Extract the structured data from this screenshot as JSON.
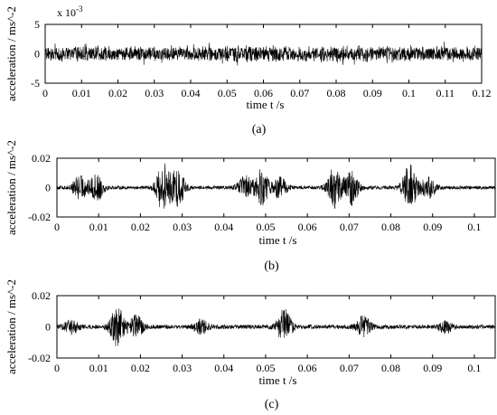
{
  "chart_data": [
    {
      "panel_label": "(a)",
      "type": "line",
      "xlabel": "time t /s",
      "ylabel": "acceleration / ms^-2",
      "y_exponent_label": "x 10^-3",
      "x_range": [
        0,
        0.12
      ],
      "ylim": [
        -5,
        5
      ],
      "x_ticks": [
        "0",
        "0.01",
        "0.02",
        "0.03",
        "0.04",
        "0.05",
        "0.06",
        "0.07",
        "0.08",
        "0.09",
        "0.1",
        "0.11",
        "0.12"
      ],
      "y_ticks": [
        "5",
        "0",
        "-5"
      ],
      "signal": {
        "description_values": "dense broadband vibration, approx. stationary",
        "approx_amplitude_typical": 1.0,
        "approx_amplitude_peak": 2.6
      }
    },
    {
      "panel_label": "(b)",
      "type": "line",
      "xlabel": "time t /s",
      "ylabel": "acceleration / ms^-2",
      "x_range": [
        0,
        0.105
      ],
      "ylim": [
        -0.02,
        0.02
      ],
      "x_ticks": [
        "0",
        "0.01",
        "0.02",
        "0.03",
        "0.04",
        "0.05",
        "0.06",
        "0.07",
        "0.08",
        "0.09",
        "0.1"
      ],
      "y_ticks": [
        "0.02",
        "0",
        "-0.02"
      ],
      "signal": {
        "baseline_amplitude": 0.0012,
        "bursts": [
          {
            "t": 0.0055,
            "amp": 0.008
          },
          {
            "t": 0.0095,
            "amp": 0.009
          },
          {
            "t": 0.0255,
            "amp": 0.016
          },
          {
            "t": 0.029,
            "amp": 0.012
          },
          {
            "t": 0.045,
            "amp": 0.008
          },
          {
            "t": 0.049,
            "amp": 0.012
          },
          {
            "t": 0.0535,
            "amp": 0.007
          },
          {
            "t": 0.0665,
            "amp": 0.014
          },
          {
            "t": 0.0705,
            "amp": 0.011
          },
          {
            "t": 0.0845,
            "amp": 0.015
          },
          {
            "t": 0.089,
            "amp": 0.007
          }
        ]
      }
    },
    {
      "panel_label": "(c)",
      "type": "line",
      "xlabel": "time t /s",
      "ylabel": "acceleration / ms^-2",
      "x_range": [
        0,
        0.105
      ],
      "ylim": [
        -0.02,
        0.02
      ],
      "x_ticks": [
        "0",
        "0.01",
        "0.02",
        "0.03",
        "0.04",
        "0.05",
        "0.06",
        "0.07",
        "0.08",
        "0.09",
        "0.1"
      ],
      "y_ticks": [
        "0.02",
        "0",
        "-0.02"
      ],
      "signal": {
        "baseline_amplitude": 0.0013,
        "bursts": [
          {
            "t": 0.0035,
            "amp": 0.004
          },
          {
            "t": 0.0145,
            "amp": 0.012
          },
          {
            "t": 0.019,
            "amp": 0.007
          },
          {
            "t": 0.0345,
            "amp": 0.004
          },
          {
            "t": 0.0545,
            "amp": 0.011
          },
          {
            "t": 0.0735,
            "amp": 0.007
          },
          {
            "t": 0.093,
            "amp": 0.004
          }
        ]
      }
    }
  ]
}
